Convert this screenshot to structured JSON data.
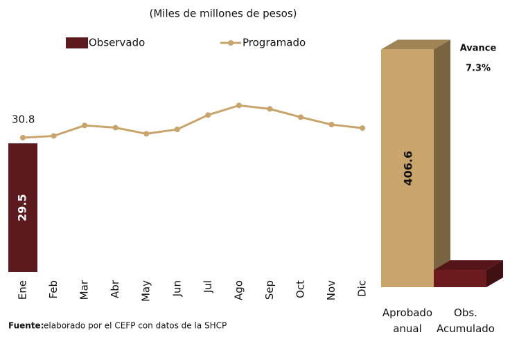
{
  "chart_data": [
    {
      "type": "combo",
      "title": "(Miles de millones de pesos)",
      "categories": [
        "Ene",
        "Feb",
        "Mar",
        "Abr",
        "May",
        "Jun",
        "Jul",
        "Ago",
        "Sep",
        "Oct",
        "Nov",
        "Dic"
      ],
      "series": [
        {
          "name": "Observado",
          "kind": "bar",
          "color": "#5c1a1f",
          "values": [
            29.5,
            null,
            null,
            null,
            null,
            null,
            null,
            null,
            null,
            null,
            null,
            null
          ],
          "value_labels": [
            "29.5",
            null,
            null,
            null,
            null,
            null,
            null,
            null,
            null,
            null,
            null,
            null
          ]
        },
        {
          "name": "Programado",
          "kind": "line",
          "color": "#c9a46a",
          "values": [
            30.8,
            31.2,
            33.6,
            33.1,
            31.7,
            32.7,
            36.0,
            38.2,
            37.4,
            35.5,
            33.8,
            33.0
          ],
          "value_labels": [
            "30.8",
            null,
            null,
            null,
            null,
            null,
            null,
            null,
            null,
            null,
            null,
            null
          ]
        }
      ],
      "ylim": [
        0,
        40
      ],
      "source_label": "Fuente:",
      "source": "elaborado por el CEFP con datos de la SHCP"
    },
    {
      "type": "bar3d",
      "categories": [
        "Aprobado anual",
        "Obs. Acumulado"
      ],
      "values": [
        406.6,
        29.5
      ],
      "value_labels": [
        "406.6",
        null
      ],
      "colors": [
        "#c9a56c",
        "#6b1a1e"
      ],
      "ylim": [
        0,
        420
      ],
      "annotation": [
        "Avance",
        "7.3%"
      ]
    }
  ]
}
